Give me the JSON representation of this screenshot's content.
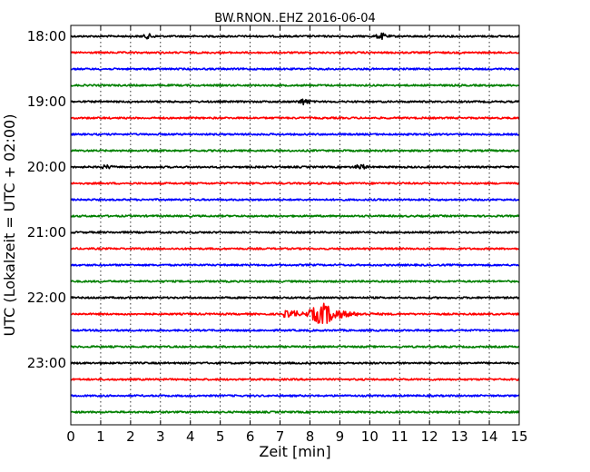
{
  "chart_data": {
    "type": "line",
    "title": "BW.RNON..EHZ 2016-06-04",
    "xlabel": "Zeit  [min]",
    "ylabel": "UTC (Lokalzeit = UTC + 02:00)",
    "xlim": [
      0,
      15
    ],
    "x_ticks": [
      "0",
      "1",
      "2",
      "3",
      "4",
      "5",
      "6",
      "7",
      "8",
      "9",
      "10",
      "11",
      "12",
      "13",
      "14",
      "15"
    ],
    "y_ticks": [
      "18:00",
      "19:00",
      "20:00",
      "21:00",
      "22:00",
      "23:00"
    ],
    "grid": "vertical dotted",
    "trace_colors": [
      "#000000",
      "#ff0000",
      "#0000ff",
      "#008000"
    ],
    "traces": [
      {
        "start": "18:00",
        "color": "#000000",
        "events": [
          {
            "t": 2.6,
            "amp": 0.25
          },
          {
            "t": 10.4,
            "amp": 0.35
          }
        ]
      },
      {
        "start": "18:15",
        "color": "#ff0000",
        "events": []
      },
      {
        "start": "18:30",
        "color": "#0000ff",
        "events": []
      },
      {
        "start": "18:45",
        "color": "#008000",
        "events": []
      },
      {
        "start": "19:00",
        "color": "#000000",
        "events": [
          {
            "t": 7.8,
            "amp": 0.35
          }
        ]
      },
      {
        "start": "19:15",
        "color": "#ff0000",
        "events": []
      },
      {
        "start": "19:30",
        "color": "#0000ff",
        "events": []
      },
      {
        "start": "19:45",
        "color": "#008000",
        "events": []
      },
      {
        "start": "20:00",
        "color": "#000000",
        "events": [
          {
            "t": 1.2,
            "amp": 0.2
          },
          {
            "t": 9.7,
            "amp": 0.3
          }
        ]
      },
      {
        "start": "20:15",
        "color": "#ff0000",
        "events": []
      },
      {
        "start": "20:30",
        "color": "#0000ff",
        "events": []
      },
      {
        "start": "20:45",
        "color": "#008000",
        "events": []
      },
      {
        "start": "21:00",
        "color": "#000000",
        "events": []
      },
      {
        "start": "21:15",
        "color": "#ff0000",
        "events": []
      },
      {
        "start": "21:30",
        "color": "#0000ff",
        "events": []
      },
      {
        "start": "21:45",
        "color": "#008000",
        "events": []
      },
      {
        "start": "22:00",
        "color": "#000000",
        "events": []
      },
      {
        "start": "22:15",
        "color": "#ff0000",
        "events": [
          {
            "t": 8.5,
            "amp": 1.4
          }
        ]
      },
      {
        "start": "22:30",
        "color": "#0000ff",
        "events": []
      },
      {
        "start": "22:45",
        "color": "#008000",
        "events": []
      },
      {
        "start": "23:00",
        "color": "#000000",
        "events": []
      },
      {
        "start": "23:15",
        "color": "#ff0000",
        "events": []
      },
      {
        "start": "23:30",
        "color": "#0000ff",
        "events": []
      },
      {
        "start": "23:45",
        "color": "#008000",
        "events": []
      }
    ]
  }
}
